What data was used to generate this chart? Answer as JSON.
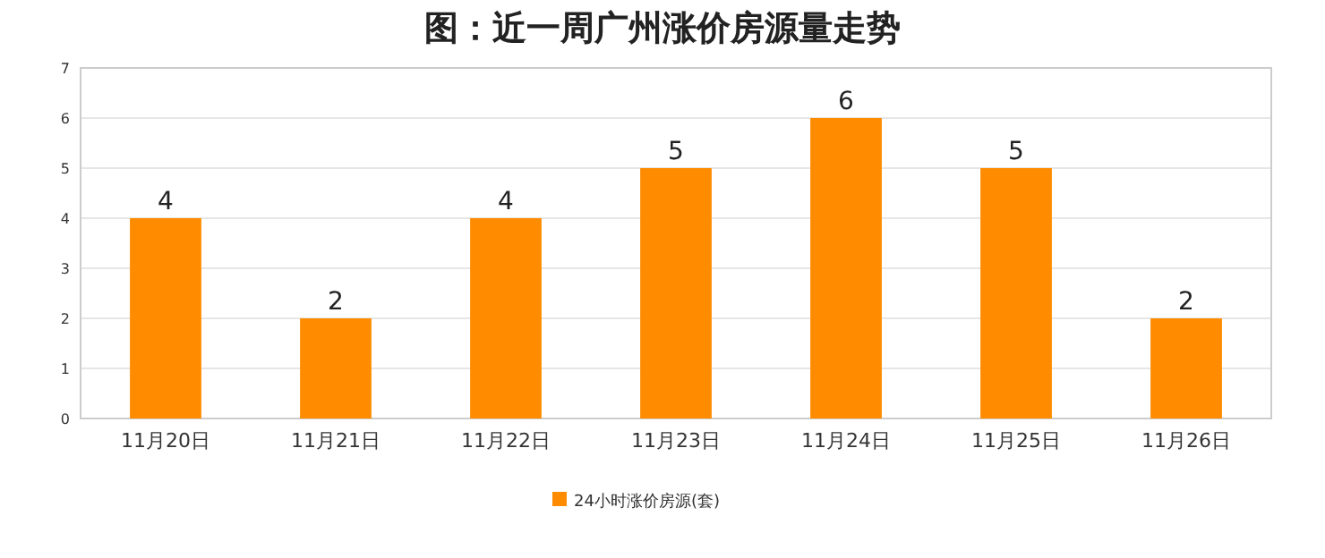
{
  "chart_data": {
    "type": "bar",
    "title": "图：近一周广州涨价房源量走势",
    "categories": [
      "11月20日",
      "11月21日",
      "11月22日",
      "11月23日",
      "11月24日",
      "11月25日",
      "11月26日"
    ],
    "series": [
      {
        "name": "24小时涨价房源(套)",
        "color": "#ff8c00",
        "values": [
          4,
          2,
          4,
          5,
          6,
          5,
          2
        ]
      }
    ],
    "ylim": [
      0,
      7
    ],
    "yticks": [
      0,
      1,
      2,
      3,
      4,
      5,
      6,
      7
    ],
    "grid": "y",
    "legend": "bottom",
    "data_labels": true
  }
}
